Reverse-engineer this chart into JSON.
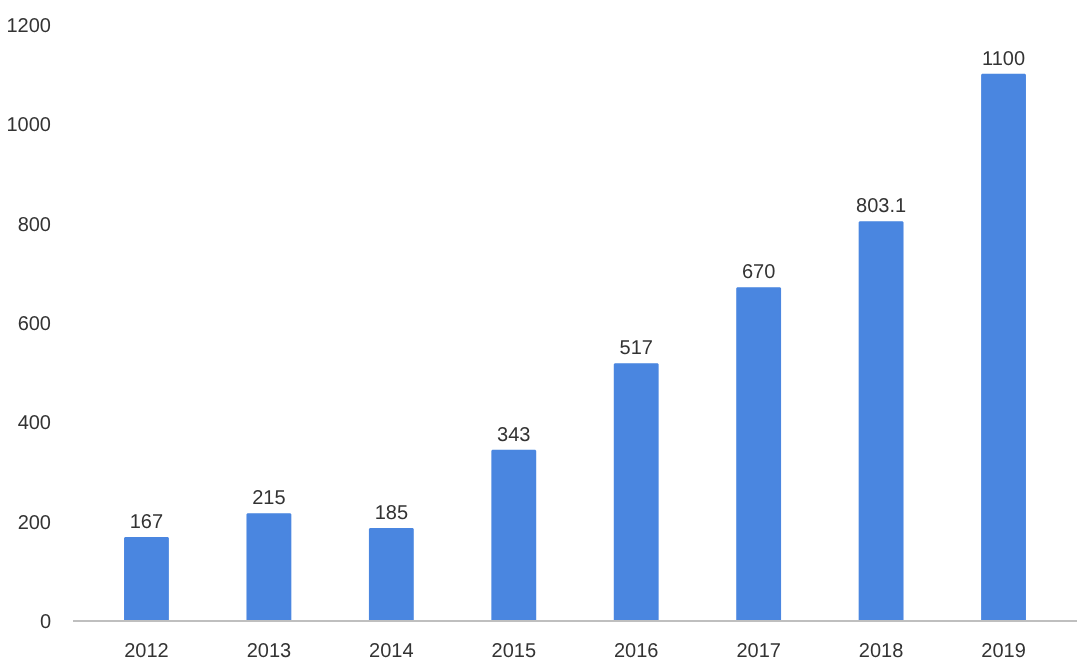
{
  "chart_data": {
    "type": "bar",
    "categories": [
      "2012",
      "2013",
      "2014",
      "2015",
      "2016",
      "2017",
      "2018",
      "2019"
    ],
    "values": [
      167,
      215,
      185,
      343,
      517,
      670,
      803.1,
      1100
    ],
    "value_labels": [
      "167",
      "215",
      "185",
      "343",
      "517",
      "670",
      "803.1",
      "1100"
    ],
    "color": "#4a86e0",
    "ylim": [
      0,
      1200
    ],
    "yticks": [
      0,
      200,
      400,
      600,
      800,
      1000,
      1200
    ],
    "grid": false
  }
}
